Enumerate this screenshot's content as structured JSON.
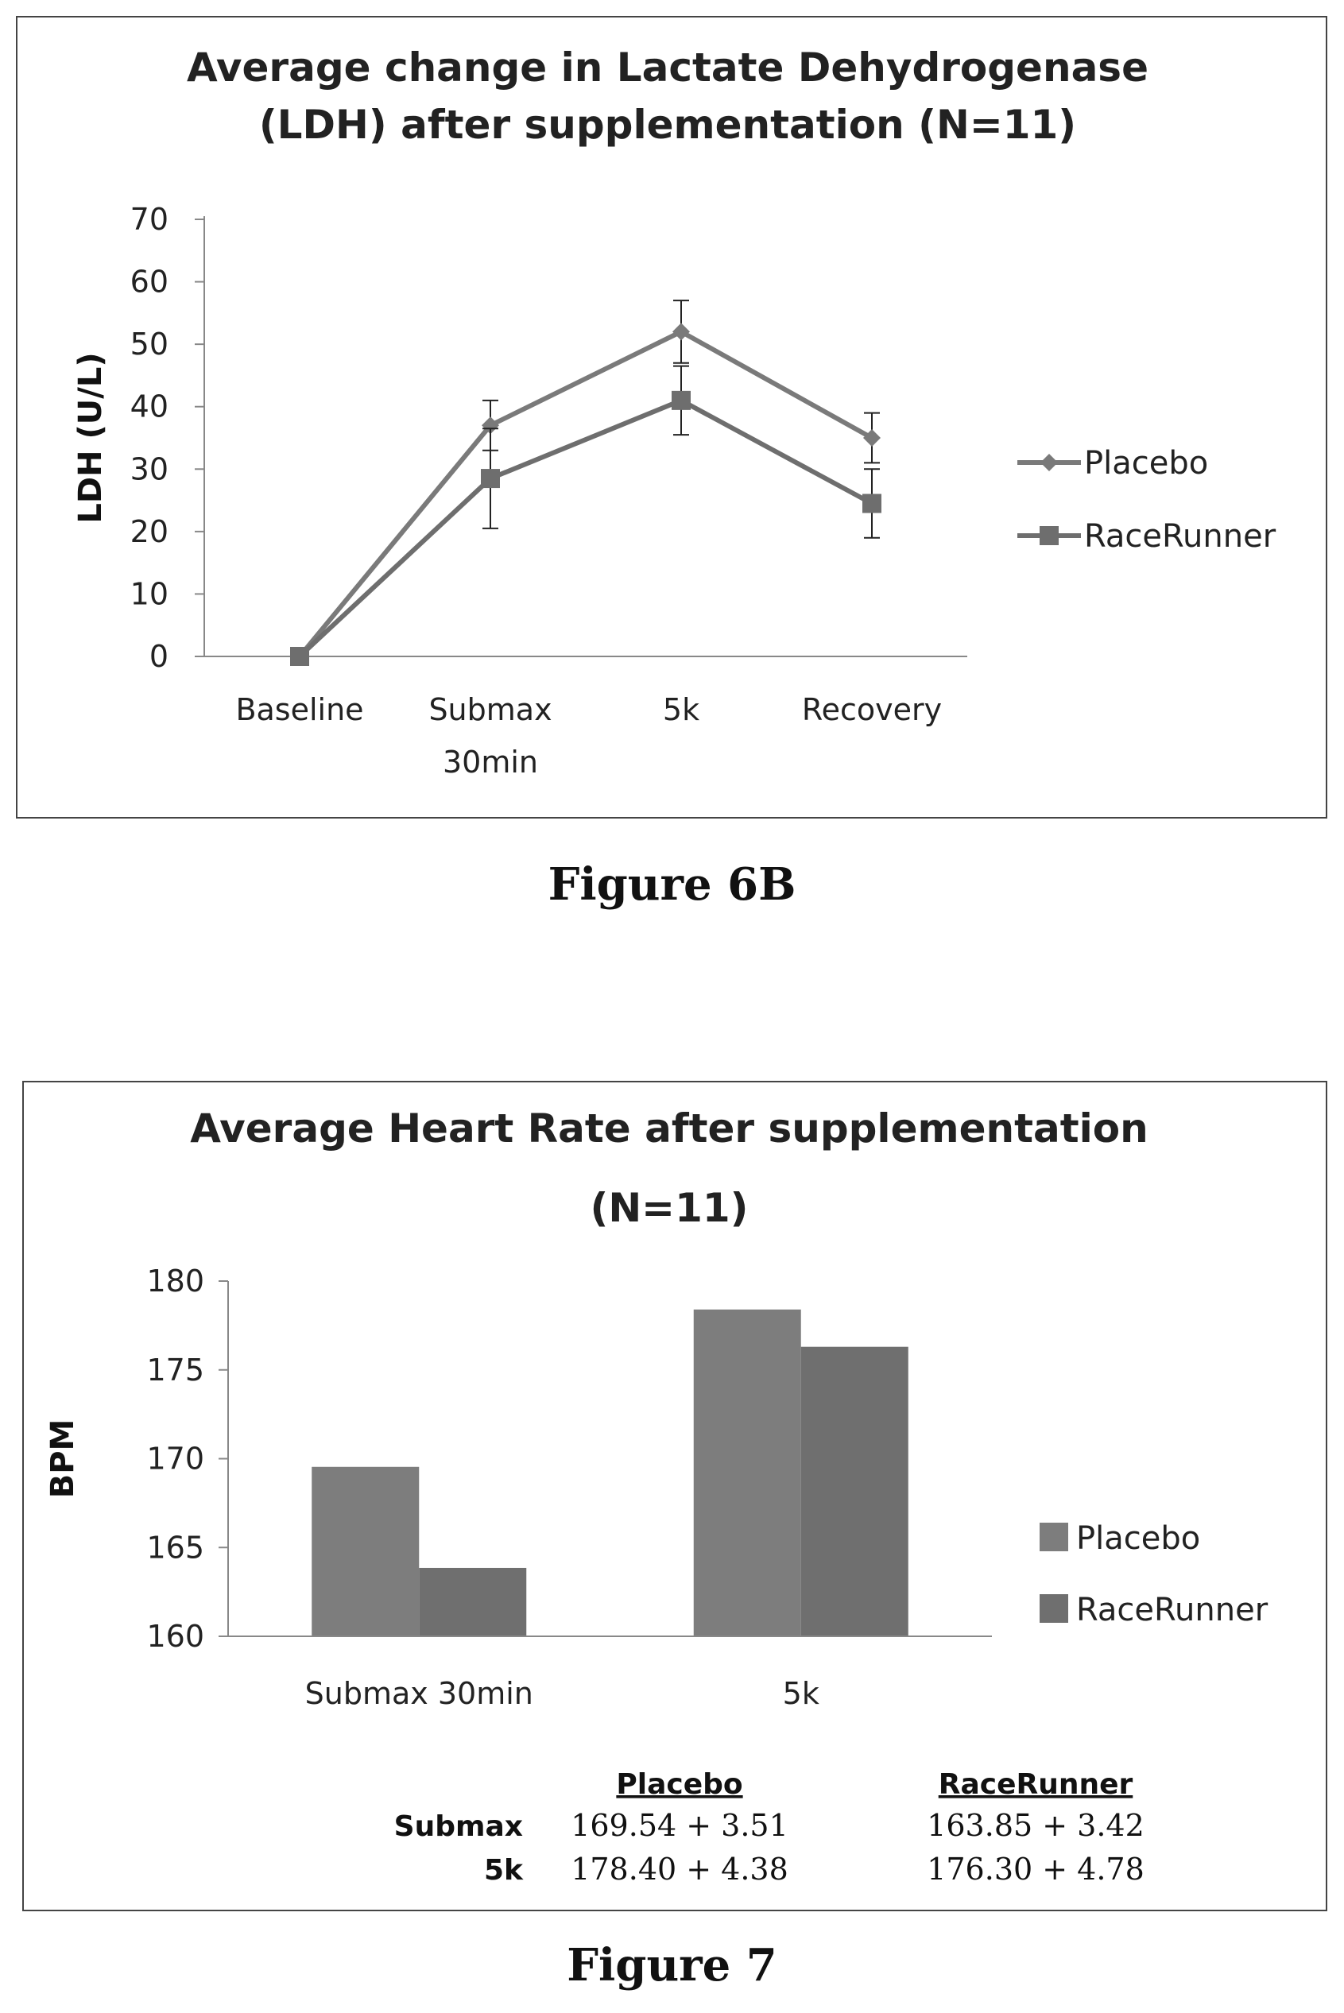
{
  "figures": [
    {
      "caption": "Figure 6B"
    },
    {
      "caption": "Figure 7"
    }
  ],
  "chart_data": [
    {
      "type": "line",
      "title_lines": [
        "Average change in Lactate Dehydrogenase",
        "(LDH) after supplementation (N=11)"
      ],
      "xlabel": "",
      "ylabel": "LDH (U/L)",
      "categories": [
        [
          "Baseline"
        ],
        [
          "Submax",
          "30min"
        ],
        [
          "5k"
        ],
        [
          "Recovery"
        ]
      ],
      "yticks": [
        0,
        10,
        20,
        30,
        40,
        50,
        60,
        70
      ],
      "ylim": [
        0,
        70
      ],
      "grid": false,
      "legend_position": "right",
      "series": [
        {
          "name": "Placebo",
          "marker": "diamond",
          "values": [
            0,
            37,
            52,
            35
          ],
          "error": [
            0,
            4,
            5,
            4
          ],
          "color": "#7a7a7a"
        },
        {
          "name": "RaceRunner",
          "marker": "square",
          "values": [
            0,
            28.5,
            41,
            24.5
          ],
          "error": [
            0,
            8,
            5.5,
            5.5
          ],
          "color": "#6e6e6e"
        }
      ]
    },
    {
      "type": "bar",
      "title_lines": [
        "Average Heart Rate after supplementation",
        "(N=11)"
      ],
      "xlabel": "",
      "ylabel": "BPM",
      "categories": [
        "Submax 30min",
        "5k"
      ],
      "yticks": [
        160,
        165,
        170,
        175,
        180
      ],
      "ylim": [
        160,
        180
      ],
      "grid": false,
      "legend_position": "right",
      "series": [
        {
          "name": "Placebo",
          "values": [
            169.54,
            178.4
          ],
          "color": "#7d7d7d"
        },
        {
          "name": "RaceRunner",
          "values": [
            163.85,
            176.3
          ],
          "color": "#6f6f6f"
        }
      ],
      "table": {
        "headers": [
          "Placebo",
          "RaceRunner"
        ],
        "rows": [
          {
            "label": "Submax",
            "cells": [
              "169.54 + 3.51",
              "163.85 + 3.42"
            ]
          },
          {
            "label": "5k",
            "cells": [
              "178.40 + 4.38",
              "176.30 + 4.78"
            ]
          }
        ]
      }
    }
  ]
}
